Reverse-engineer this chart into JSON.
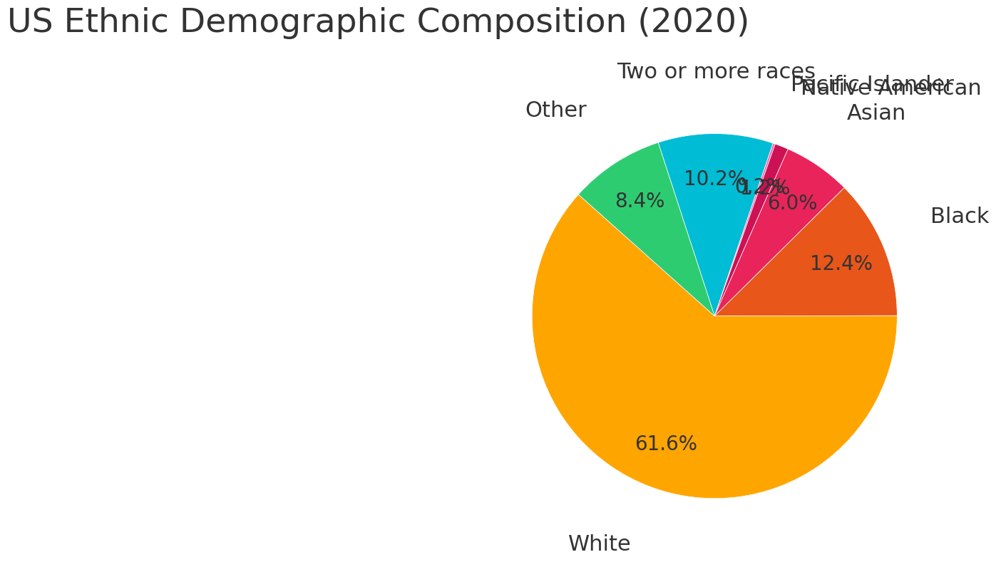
{
  "title": "US Ethnic Demographic Composition (2020)",
  "title_fontsize": 34,
  "labels": [
    "Two or more races",
    "Pacific Islander",
    "Native American",
    "Asian",
    "Black",
    "White",
    "Other"
  ],
  "values": [
    10.2,
    0.2,
    1.2,
    6.0,
    12.4,
    61.7,
    8.4
  ],
  "colors": [
    "#00BCD4",
    "#FF69B4",
    "#CC1155",
    "#E8245A",
    "#E8561A",
    "#FFA500",
    "#2ECC71"
  ],
  "label_fontsize": 22,
  "pct_fontsize": 20,
  "startangle": 108,
  "background": "#ffffff",
  "text_color": "#333333"
}
